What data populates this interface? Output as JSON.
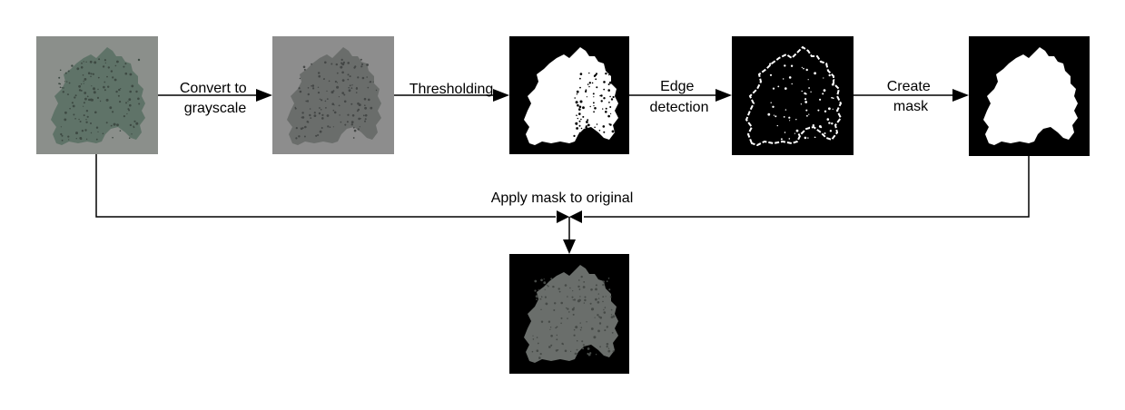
{
  "diagram": {
    "steps": [
      {
        "id": "original",
        "label": ""
      },
      {
        "id": "grayscale",
        "label": ""
      },
      {
        "id": "threshold",
        "label": ""
      },
      {
        "id": "edges",
        "label": ""
      },
      {
        "id": "mask",
        "label": ""
      },
      {
        "id": "result",
        "label": ""
      }
    ],
    "edges": [
      {
        "from": "original",
        "to": "grayscale",
        "label_lines": [
          "Convert to",
          "grayscale"
        ]
      },
      {
        "from": "grayscale",
        "to": "threshold",
        "label_lines": [
          "Thresholding"
        ]
      },
      {
        "from": "threshold",
        "to": "edges",
        "label_lines": [
          "Edge",
          "detection"
        ]
      },
      {
        "from": "edges",
        "to": "mask",
        "label_lines": [
          "Create",
          "mask"
        ]
      },
      {
        "from": "original",
        "to": "result",
        "label_lines": [
          "Apply mask to original"
        ]
      },
      {
        "from": "mask",
        "to": "result",
        "label_lines": []
      }
    ],
    "colors": {
      "leaf_green": "#5f7368",
      "gray_bg": "#8c8c8c",
      "gray_leaf": "#6b6e6c",
      "black": "#000000",
      "white": "#ffffff",
      "line": "#000000"
    }
  }
}
